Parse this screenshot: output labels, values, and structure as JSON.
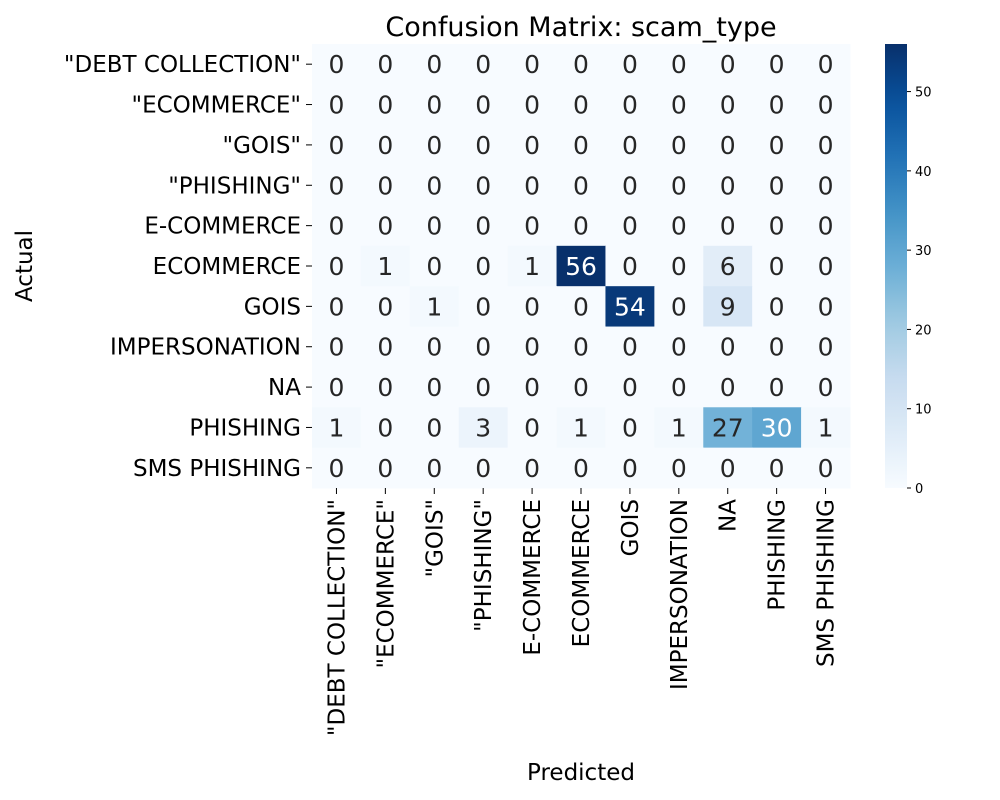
{
  "chart_data": {
    "type": "heatmap",
    "title": "Confusion Matrix: scam_type",
    "xlabel": "Predicted",
    "ylabel": "Actual",
    "x_categories": [
      "\"DEBT COLLECTION\"",
      "\"ECOMMERCE\"",
      "\"GOIS\"",
      "\"PHISHING\"",
      "E-COMMERCE",
      "ECOMMERCE",
      "GOIS",
      "IMPERSONATION",
      "NA",
      "PHISHING",
      "SMS PHISHING"
    ],
    "y_categories": [
      "\"DEBT COLLECTION\"",
      "\"ECOMMERCE\"",
      "\"GOIS\"",
      "\"PHISHING\"",
      "E-COMMERCE",
      "ECOMMERCE",
      "GOIS",
      "IMPERSONATION",
      "NA",
      "PHISHING",
      "SMS PHISHING"
    ],
    "values": [
      [
        0,
        0,
        0,
        0,
        0,
        0,
        0,
        0,
        0,
        0,
        0
      ],
      [
        0,
        0,
        0,
        0,
        0,
        0,
        0,
        0,
        0,
        0,
        0
      ],
      [
        0,
        0,
        0,
        0,
        0,
        0,
        0,
        0,
        0,
        0,
        0
      ],
      [
        0,
        0,
        0,
        0,
        0,
        0,
        0,
        0,
        0,
        0,
        0
      ],
      [
        0,
        0,
        0,
        0,
        0,
        0,
        0,
        0,
        0,
        0,
        0
      ],
      [
        0,
        1,
        0,
        0,
        1,
        56,
        0,
        0,
        6,
        0,
        0
      ],
      [
        0,
        0,
        1,
        0,
        0,
        0,
        54,
        0,
        9,
        0,
        0
      ],
      [
        0,
        0,
        0,
        0,
        0,
        0,
        0,
        0,
        0,
        0,
        0
      ],
      [
        0,
        0,
        0,
        0,
        0,
        0,
        0,
        0,
        0,
        0,
        0
      ],
      [
        1,
        0,
        0,
        3,
        0,
        1,
        0,
        1,
        27,
        30,
        1
      ],
      [
        0,
        0,
        0,
        0,
        0,
        0,
        0,
        0,
        0,
        0,
        0
      ]
    ],
    "colormap": "Blues",
    "colorbar": {
      "min": 0,
      "max": 56,
      "ticks": [
        0,
        10,
        20,
        30,
        40,
        50
      ]
    },
    "colors": {
      "low": "#f7fbff",
      "high": "#08306b",
      "text_dark": "#262626",
      "text_light": "#ffffff"
    }
  }
}
